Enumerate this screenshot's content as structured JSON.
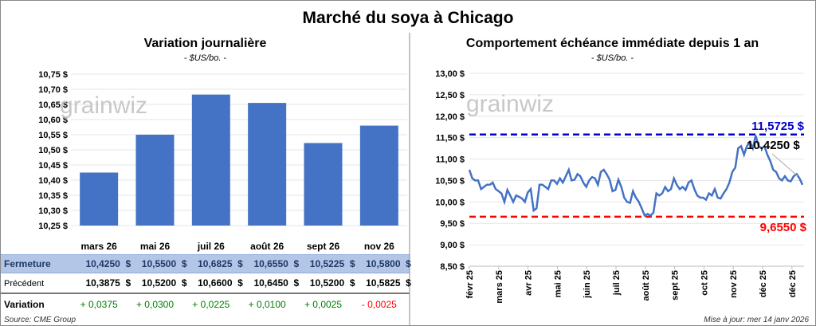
{
  "title": "Marché du soya à Chicago",
  "source": "Source: CME Group",
  "updated": "Mise à jour: mer 14 janv 2026",
  "watermark": "grainwiz",
  "chart_data": [
    {
      "type": "bar",
      "title": "Variation journalière",
      "subtitle": "- $US/bo. -",
      "categories": [
        "mars 26",
        "mai 26",
        "juil 26",
        "août 26",
        "sept 26",
        "nov 26"
      ],
      "values": [
        10.425,
        10.55,
        10.6825,
        10.655,
        10.5225,
        10.58
      ],
      "ylim": [
        10.25,
        10.75
      ],
      "yticks": [
        "10,25 $",
        "10,30 $",
        "10,35 $",
        "10,40 $",
        "10,45 $",
        "10,50 $",
        "10,55 $",
        "10,60 $",
        "10,65 $",
        "10,70 $",
        "10,75 $"
      ],
      "color": "#4472c4"
    },
    {
      "type": "line",
      "title": "Comportement échéance immédiate depuis 1 an",
      "subtitle": "- $US/bo. -",
      "xticks": [
        "févr 25",
        "mars 25",
        "avr 25",
        "mai 25",
        "juin 25",
        "juil 25",
        "août 25",
        "sept 25",
        "oct 25",
        "nov 25",
        "déc 25",
        "déc 25"
      ],
      "yticks": [
        "8,50 $",
        "9,00 $",
        "9,50 $",
        "10,00 $",
        "10,50 $",
        "11,00 $",
        "11,50 $",
        "12,00 $",
        "12,50 $",
        "13,00 $"
      ],
      "ylim": [
        8.5,
        13.0
      ],
      "values": [
        10.75,
        10.55,
        10.5,
        10.5,
        10.3,
        10.35,
        10.4,
        10.4,
        10.45,
        10.3,
        10.25,
        10.2,
        10.0,
        10.28,
        10.15,
        10.0,
        10.15,
        10.12,
        10.08,
        10.0,
        10.22,
        10.3,
        9.8,
        9.85,
        10.4,
        10.4,
        10.35,
        10.3,
        10.5,
        10.5,
        10.42,
        10.55,
        10.45,
        10.6,
        10.75,
        10.5,
        10.52,
        10.65,
        10.6,
        10.45,
        10.35,
        10.5,
        10.58,
        10.55,
        10.4,
        10.7,
        10.75,
        10.65,
        10.52,
        10.25,
        10.28,
        10.52,
        10.35,
        10.1,
        10.0,
        9.98,
        10.25,
        10.1,
        10.0,
        9.85,
        9.68,
        9.72,
        9.68,
        9.75,
        10.2,
        10.15,
        10.2,
        10.35,
        10.25,
        10.3,
        10.55,
        10.4,
        10.3,
        10.35,
        10.28,
        10.45,
        10.5,
        10.3,
        10.15,
        10.1,
        10.1,
        10.05,
        10.2,
        10.15,
        10.3,
        10.1,
        10.08,
        10.2,
        10.3,
        10.45,
        10.7,
        10.8,
        11.25,
        11.3,
        11.1,
        11.3,
        11.4,
        11.25,
        11.55,
        11.3,
        11.25,
        11.3,
        11.1,
        10.95,
        10.75,
        10.7,
        10.55,
        10.5,
        10.6,
        10.5,
        10.48,
        10.6,
        10.65,
        10.55,
        10.4
      ],
      "max_line": {
        "value": 11.5725,
        "label": "11,5725 $",
        "color": "#0000cc"
      },
      "min_line": {
        "value": 9.655,
        "label": "9,6550 $",
        "color": "#ff0000"
      },
      "last_label": "10,4250 $",
      "color": "#4472c4"
    }
  ],
  "table": {
    "rows": [
      {
        "label": "Fermeture",
        "values": [
          "10,4250  $",
          "10,5500  $",
          "10,6825  $",
          "10,6550  $",
          "10,5225  $",
          "10,5800  $"
        ]
      },
      {
        "label": "Précédent",
        "values": [
          "10,3875  $",
          "10,5200  $",
          "10,6600  $",
          "10,6450  $",
          "10,5200  $",
          "10,5825  $"
        ]
      },
      {
        "label": "Variation",
        "values": [
          "+ 0,0375",
          "+ 0,0300",
          "+ 0,0225",
          "+ 0,0100",
          "+ 0,0025",
          "- 0,0025"
        ],
        "colors": [
          "#008000",
          "#008000",
          "#008000",
          "#008000",
          "#008000",
          "#ff0000"
        ]
      }
    ]
  }
}
